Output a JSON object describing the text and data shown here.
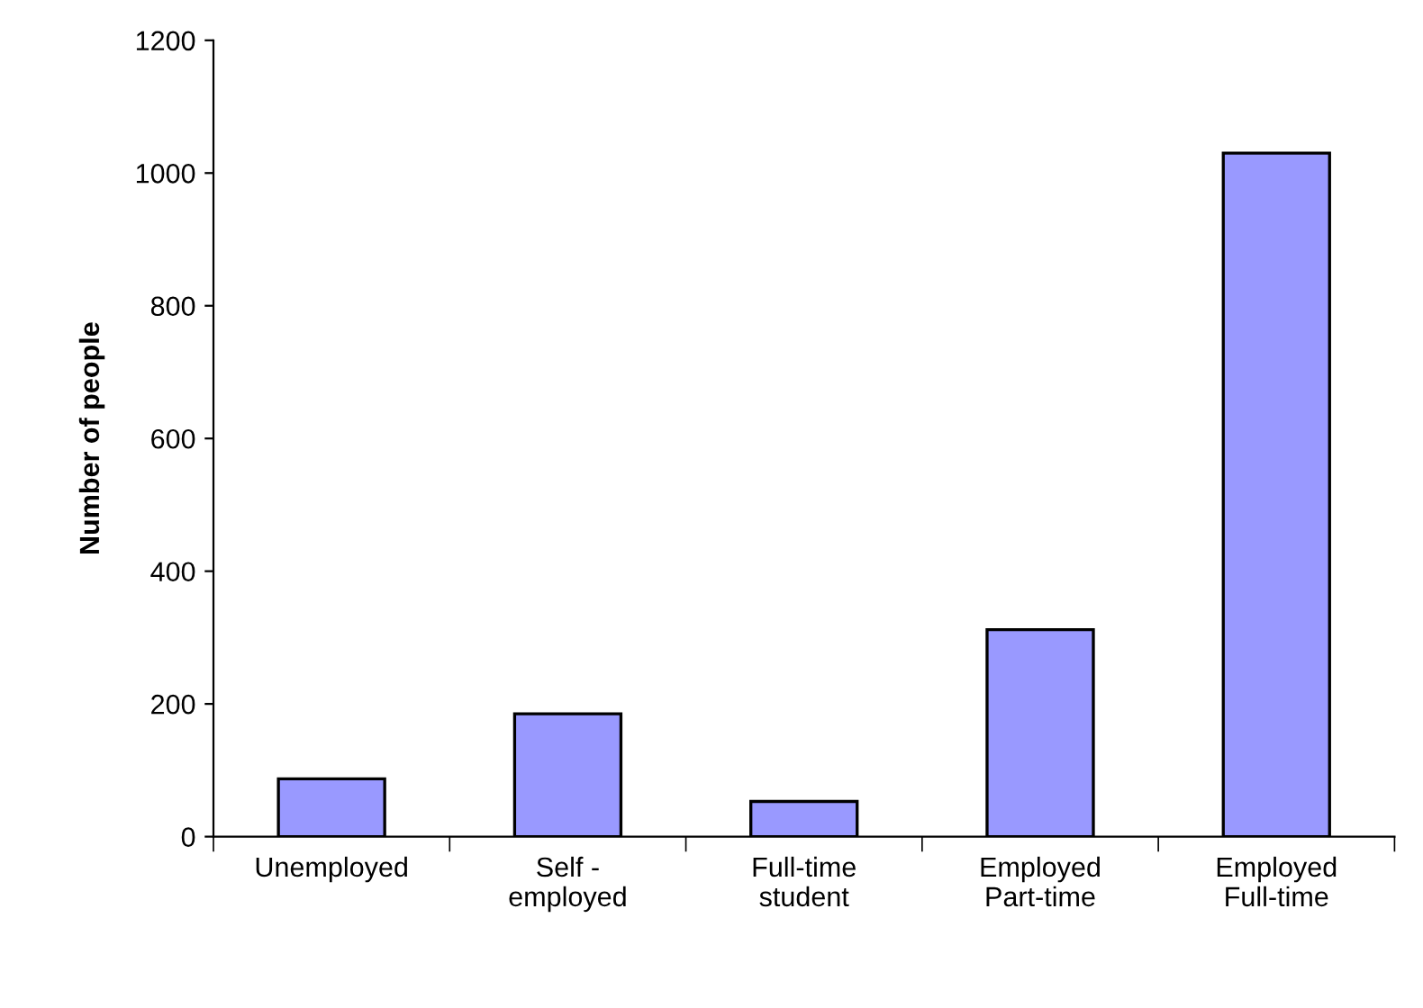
{
  "chart_data": {
    "type": "bar",
    "ylabel": "Number of people",
    "categories": [
      "Unemployed",
      "Self -\nemployed",
      "Full-time\nstudent",
      "Employed\nPart-time",
      "Employed\nFull-time"
    ],
    "values": [
      87,
      185,
      53,
      312,
      1030
    ],
    "color": "#9999ff",
    "ylim": [
      0,
      1200
    ],
    "yticks": [
      0,
      200,
      400,
      600,
      800,
      1000,
      1200
    ],
    "grid": false,
    "legend": false
  }
}
